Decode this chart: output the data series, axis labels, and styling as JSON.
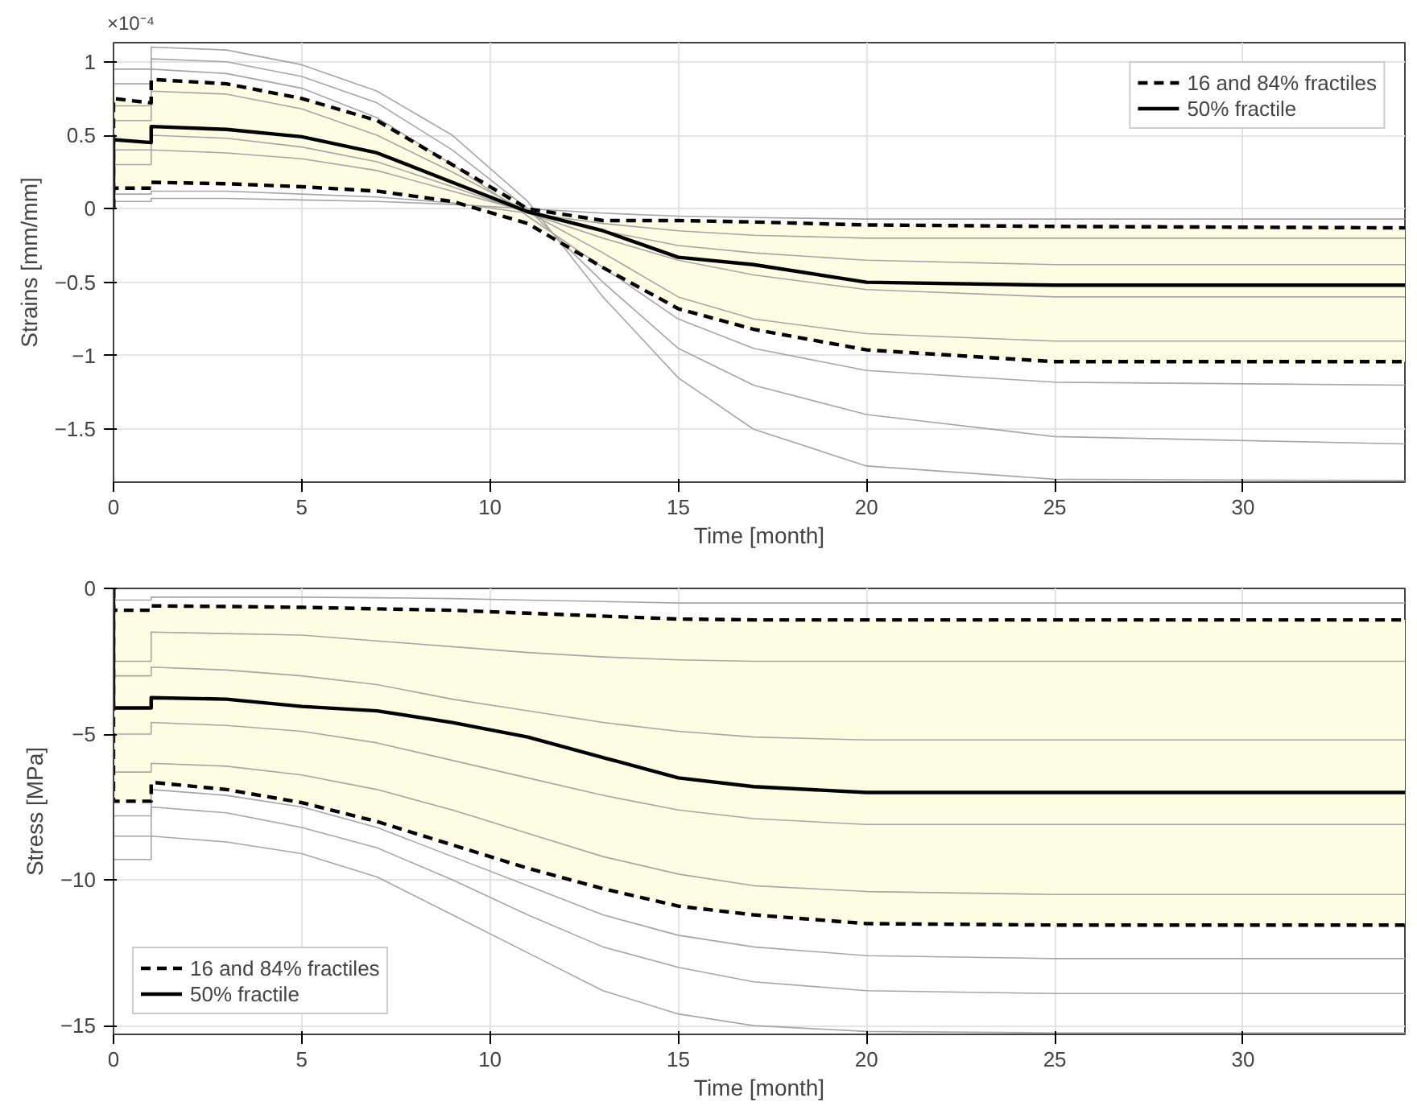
{
  "chart_data": [
    {
      "type": "line",
      "xlabel": "Time [month]",
      "ylabel": "Strains [mm/mm]",
      "annotations": [
        "×10⁻⁴"
      ],
      "x": [
        0,
        0,
        1,
        1,
        3,
        5,
        7,
        9,
        11,
        13,
        15,
        17,
        20,
        25,
        34.3
      ],
      "xlim": [
        0,
        34.3
      ],
      "ylim": [
        -1.86,
        1.13
      ],
      "xticks": [
        0,
        5,
        10,
        15,
        20,
        25,
        30
      ],
      "yticks": [
        -1.5,
        -1,
        -0.5,
        0,
        0.5,
        1
      ],
      "grid": true,
      "legend": "top right",
      "series": [
        {
          "color": "#a6a6a6",
          "values": [
            0,
            0.95,
            0.95,
            1.1,
            1.08,
            0.98,
            0.8,
            0.5,
            0.05,
            -0.6,
            -1.15,
            -1.5,
            -1.75,
            -1.84,
            -1.85
          ]
        },
        {
          "color": "#a6a6a6",
          "values": [
            0,
            0.85,
            0.85,
            1.02,
            1.0,
            0.9,
            0.72,
            0.4,
            0.0,
            -0.5,
            -0.95,
            -1.2,
            -1.4,
            -1.55,
            -1.6
          ]
        },
        {
          "color": "#a6a6a6",
          "values": [
            0,
            0.7,
            0.7,
            0.95,
            0.92,
            0.82,
            0.62,
            0.3,
            -0.05,
            -0.4,
            -0.75,
            -0.95,
            -1.1,
            -1.18,
            -1.2
          ]
        },
        {
          "color": "#a6a6a6",
          "values": [
            0,
            0.6,
            0.6,
            0.8,
            0.78,
            0.68,
            0.5,
            0.25,
            -0.02,
            -0.3,
            -0.6,
            -0.75,
            -0.85,
            -0.9,
            -0.9
          ]
        },
        {
          "color": "#a6a6a6",
          "values": [
            0,
            0.4,
            0.4,
            0.5,
            0.48,
            0.42,
            0.32,
            0.15,
            -0.03,
            -0.2,
            -0.35,
            -0.45,
            -0.55,
            -0.6,
            -0.6
          ]
        },
        {
          "color": "#a6a6a6",
          "values": [
            0,
            0.3,
            0.3,
            0.4,
            0.38,
            0.34,
            0.26,
            0.12,
            -0.02,
            -0.15,
            -0.25,
            -0.3,
            -0.35,
            -0.38,
            -0.38
          ]
        },
        {
          "color": "#a6a6a6",
          "values": [
            0,
            0.1,
            0.1,
            0.12,
            0.12,
            0.1,
            0.08,
            0.04,
            -0.03,
            -0.1,
            -0.15,
            -0.18,
            -0.2,
            -0.2,
            -0.2
          ]
        },
        {
          "color": "#a6a6a6",
          "values": [
            0,
            0.05,
            0.05,
            0.07,
            0.07,
            0.06,
            0.05,
            0.03,
            0.0,
            -0.03,
            -0.05,
            -0.06,
            -0.07,
            -0.07,
            -0.07
          ]
        },
        {
          "name": "16 and 84% fractiles",
          "color": "#000000",
          "line_style": "dashed",
          "values": [
            0,
            0.75,
            0.72,
            0.88,
            0.85,
            0.75,
            0.6,
            0.3,
            0.0,
            -0.08,
            -0.08,
            -0.09,
            -0.11,
            -0.12,
            -0.13
          ]
        },
        {
          "color": "#000000",
          "line_style": "dashed",
          "values": [
            0,
            0.14,
            0.14,
            0.18,
            0.17,
            0.15,
            0.12,
            0.05,
            -0.1,
            -0.4,
            -0.68,
            -0.82,
            -0.96,
            -1.04,
            -1.04
          ]
        },
        {
          "name": "50% fractile",
          "color": "#000000",
          "line_style": "solid",
          "values": [
            0,
            0.47,
            0.45,
            0.56,
            0.54,
            0.49,
            0.38,
            0.18,
            -0.02,
            -0.15,
            -0.33,
            -0.38,
            -0.5,
            -0.52,
            -0.52
          ],
          "lower": [
            0,
            0.14,
            0.14,
            0.18,
            0.17,
            0.15,
            0.12,
            0.05,
            -0.1,
            -0.4,
            -0.68,
            -0.82,
            -0.96,
            -1.04,
            -1.04
          ],
          "upper": [
            0,
            0.75,
            0.72,
            0.88,
            0.85,
            0.75,
            0.6,
            0.3,
            0.0,
            -0.08,
            -0.08,
            -0.09,
            -0.11,
            -0.12,
            -0.13
          ]
        }
      ]
    },
    {
      "type": "line",
      "xlabel": "Time [month]",
      "ylabel": "Stress [MPa]",
      "x": [
        0,
        0,
        1,
        1,
        3,
        5,
        7,
        9,
        11,
        13,
        15,
        17,
        20,
        25,
        34.3
      ],
      "xlim": [
        0,
        34.3
      ],
      "ylim": [
        -15.3,
        0
      ],
      "xticks": [
        0,
        5,
        10,
        15,
        20,
        25,
        30
      ],
      "yticks": [
        -15,
        -10,
        -5,
        0
      ],
      "grid": true,
      "legend": "bottom left",
      "series": [
        {
          "color": "#a6a6a6",
          "values": [
            0,
            -9.3,
            -9.3,
            -8.5,
            -8.7,
            -9.1,
            -9.9,
            -11.2,
            -12.5,
            -13.8,
            -14.6,
            -15.0,
            -15.2,
            -15.25,
            -15.25
          ]
        },
        {
          "color": "#a6a6a6",
          "values": [
            0,
            -8.5,
            -8.5,
            -7.5,
            -7.7,
            -8.2,
            -8.9,
            -10.0,
            -11.2,
            -12.3,
            -13.0,
            -13.5,
            -13.8,
            -13.9,
            -13.9
          ]
        },
        {
          "color": "#a6a6a6",
          "values": [
            0,
            -7.8,
            -7.8,
            -6.9,
            -7.1,
            -7.5,
            -8.2,
            -9.2,
            -10.2,
            -11.2,
            -11.9,
            -12.3,
            -12.6,
            -12.7,
            -12.7
          ]
        },
        {
          "color": "#a6a6a6",
          "values": [
            0,
            -6.3,
            -6.3,
            -6.0,
            -6.1,
            -6.4,
            -6.9,
            -7.6,
            -8.4,
            -9.2,
            -9.8,
            -10.2,
            -10.4,
            -10.5,
            -10.5
          ]
        },
        {
          "color": "#a6a6a6",
          "values": [
            0,
            -5.0,
            -5.0,
            -4.6,
            -4.7,
            -4.9,
            -5.3,
            -5.9,
            -6.5,
            -7.1,
            -7.6,
            -7.9,
            -8.1,
            -8.1,
            -8.1
          ]
        },
        {
          "color": "#a6a6a6",
          "values": [
            0,
            -3.0,
            -3.0,
            -2.7,
            -2.8,
            -3.0,
            -3.3,
            -3.8,
            -4.2,
            -4.6,
            -4.9,
            -5.1,
            -5.2,
            -5.2,
            -5.2
          ]
        },
        {
          "color": "#a6a6a6",
          "values": [
            0,
            -2.5,
            -2.5,
            -1.5,
            -1.55,
            -1.6,
            -1.8,
            -2.0,
            -2.2,
            -2.35,
            -2.45,
            -2.5,
            -2.5,
            -2.5,
            -2.5
          ]
        },
        {
          "color": "#a6a6a6",
          "values": [
            0,
            -0.4,
            -0.4,
            -0.3,
            -0.3,
            -0.3,
            -0.32,
            -0.35,
            -0.4,
            -0.45,
            -0.5,
            -0.5,
            -0.5,
            -0.5,
            -0.5
          ]
        },
        {
          "name": "16 and 84% fractiles",
          "color": "#000000",
          "line_style": "dashed",
          "values": [
            0,
            -0.75,
            -0.75,
            -0.6,
            -0.62,
            -0.65,
            -0.7,
            -0.75,
            -0.85,
            -0.95,
            -1.05,
            -1.08,
            -1.08,
            -1.08,
            -1.08
          ]
        },
        {
          "color": "#000000",
          "line_style": "dashed",
          "values": [
            0,
            -7.3,
            -7.3,
            -6.65,
            -6.9,
            -7.35,
            -8.0,
            -8.8,
            -9.6,
            -10.3,
            -10.9,
            -11.2,
            -11.5,
            -11.55,
            -11.55
          ]
        },
        {
          "name": "50% fractile",
          "color": "#000000",
          "line_style": "solid",
          "values": [
            0,
            -4.1,
            -4.1,
            -3.75,
            -3.8,
            -4.05,
            -4.2,
            -4.6,
            -5.1,
            -5.8,
            -6.5,
            -6.8,
            -7.0,
            -7.0,
            -7.0
          ],
          "lower": [
            0,
            -7.3,
            -7.3,
            -6.65,
            -6.9,
            -7.35,
            -8.0,
            -8.8,
            -9.6,
            -10.3,
            -10.9,
            -11.2,
            -11.5,
            -11.55,
            -11.55
          ],
          "upper": [
            0,
            -0.75,
            -0.75,
            -0.6,
            -0.62,
            -0.65,
            -0.7,
            -0.75,
            -0.85,
            -0.95,
            -1.05,
            -1.08,
            -1.08,
            -1.08,
            -1.08
          ]
        }
      ]
    }
  ]
}
